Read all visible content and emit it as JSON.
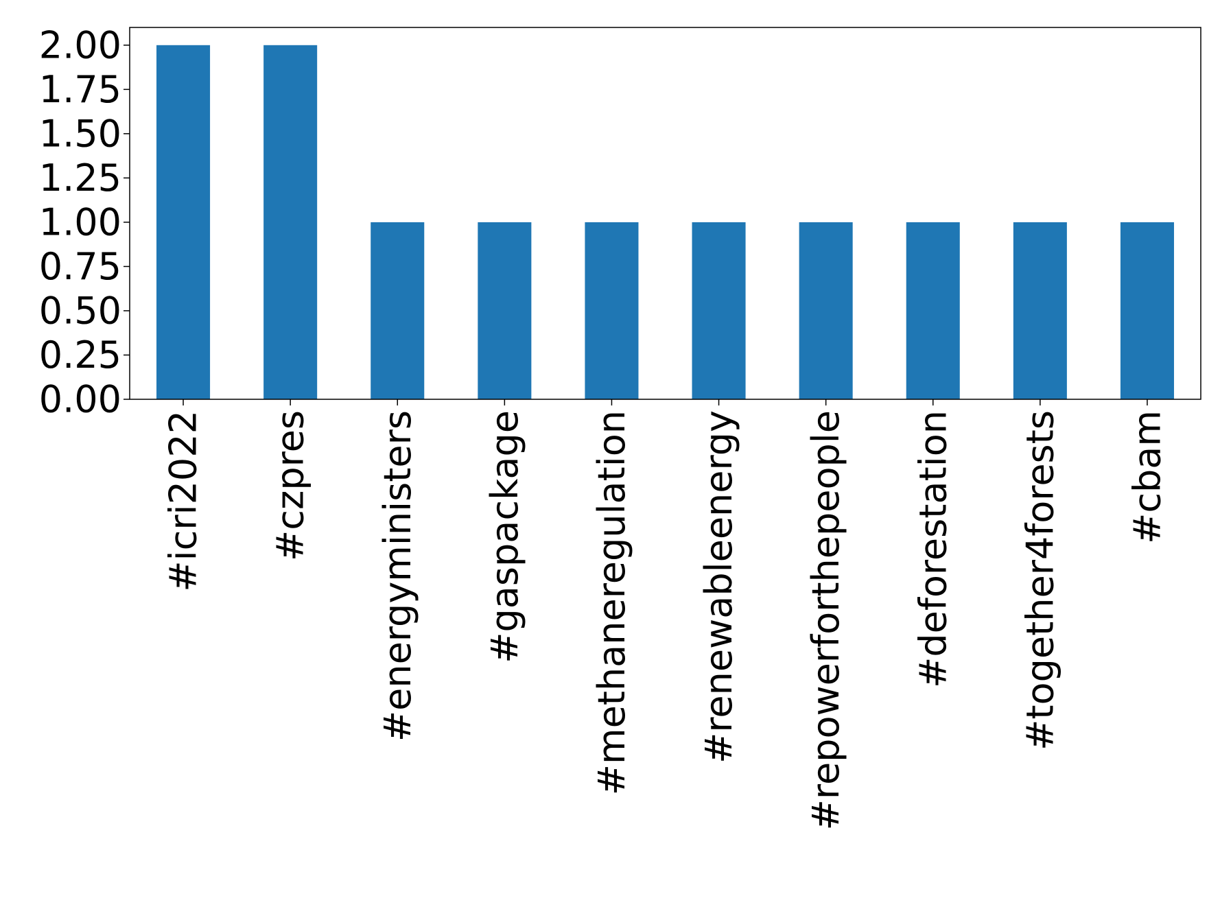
{
  "chart_data": {
    "type": "bar",
    "title": "",
    "xlabel": "",
    "ylabel": "",
    "categories": [
      "#icri2022",
      "#czpres",
      "#energyministers",
      "#gaspackage",
      "#methaneregulation",
      "#renewableenergy",
      "#repowerforthepeople",
      "#deforestation",
      "#together4forests",
      "#cbam"
    ],
    "values": [
      2,
      2,
      1,
      1,
      1,
      1,
      1,
      1,
      1,
      1
    ],
    "ylim": [
      0,
      2.1
    ],
    "yticks": [
      0,
      0.25,
      0.5,
      0.75,
      1.0,
      1.25,
      1.5,
      1.75,
      2.0
    ],
    "ytick_labels": [
      "0.00",
      "0.25",
      "0.50",
      "0.75",
      "1.00",
      "1.25",
      "1.50",
      "1.75",
      "2.00"
    ],
    "grid": false,
    "legend": "none",
    "bar_color": "#1f77b4"
  }
}
